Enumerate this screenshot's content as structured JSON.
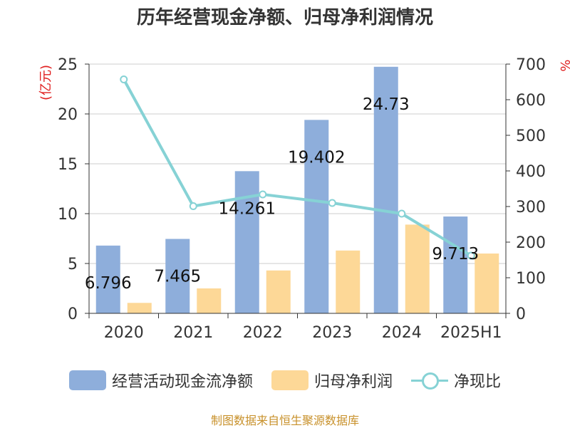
{
  "title": "历年经营现金净额、归母净利润情况",
  "source": "制图数据来自恒生聚源数据库",
  "colors": {
    "cashflow": "#8eaedb",
    "profit": "#fdd897",
    "ratio": "#86d2d5",
    "unit_label": "#e02020",
    "source_text": "#c8912b"
  },
  "chart_data": {
    "type": "bar",
    "title": "历年经营现金净额、归母净利润情况",
    "categories": [
      "2020",
      "2021",
      "2022",
      "2023",
      "2024",
      "2025H1"
    ],
    "series": [
      {
        "name": "经营活动现金流净额",
        "type": "bar",
        "axis": "left",
        "values": [
          6.796,
          7.465,
          14.261,
          19.402,
          24.73,
          9.713
        ],
        "labels": [
          "6.796",
          "7.465",
          "14.261",
          "19.402",
          "24.73",
          "9.713"
        ]
      },
      {
        "name": "归母净利润",
        "type": "bar",
        "axis": "left",
        "values": [
          1.05,
          2.5,
          4.3,
          6.3,
          8.9,
          6.0
        ]
      },
      {
        "name": "净现比",
        "type": "line",
        "axis": "right",
        "values": [
          657,
          301,
          334,
          310,
          280,
          162
        ]
      }
    ],
    "ylabel": "(亿元)",
    "y2label": "%",
    "ylim": [
      0,
      25
    ],
    "y2lim": [
      0,
      700
    ],
    "yticks": [
      "0",
      "5",
      "10",
      "15",
      "20",
      "25"
    ],
    "y2ticks": [
      "0",
      "100",
      "200",
      "300",
      "400",
      "500",
      "600",
      "700"
    ],
    "grid": true,
    "legend_position": "bottom"
  }
}
